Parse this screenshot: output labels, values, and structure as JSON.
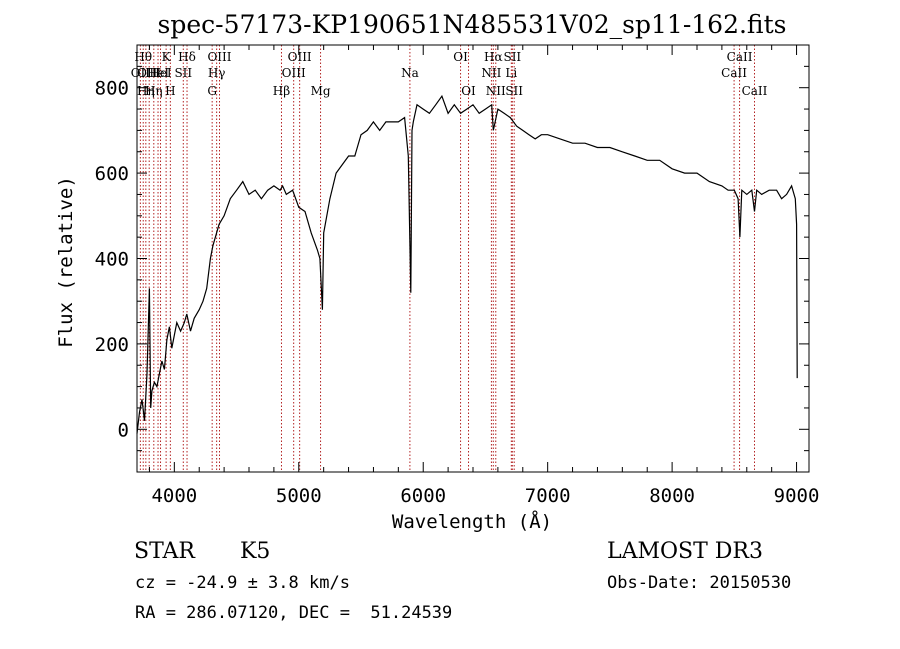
{
  "chart_data": {
    "type": "line",
    "title": "spec-57173-KP190651N485531V02_sp11-162.fits",
    "xlabel": "Wavelength (Å)",
    "ylabel": "Flux (relative)",
    "xlim": [
      3700,
      9100
    ],
    "ylim": [
      -100,
      900
    ],
    "xticks": [
      4000,
      5000,
      6000,
      7000,
      8000,
      9000
    ],
    "yticks": [
      0,
      200,
      400,
      600,
      800
    ],
    "grid": false,
    "series": [
      {
        "x": [
          3700,
          3720,
          3740,
          3760,
          3780,
          3800,
          3810,
          3820,
          3840,
          3860,
          3880,
          3900,
          3920,
          3940,
          3960,
          3980,
          4000,
          4020,
          4050,
          4080,
          4100,
          4130,
          4160,
          4200,
          4230,
          4260,
          4290,
          4310,
          4330,
          4360,
          4400,
          4450,
          4500,
          4550,
          4600,
          4650,
          4700,
          4750,
          4800,
          4850,
          4870,
          4900,
          4950,
          5000,
          5050,
          5100,
          5150,
          5170,
          5190,
          5200,
          5250,
          5300,
          5350,
          5400,
          5450,
          5500,
          5550,
          5600,
          5650,
          5700,
          5750,
          5800,
          5850,
          5880,
          5900,
          5910,
          5920,
          5950,
          6000,
          6050,
          6100,
          6150,
          6200,
          6250,
          6300,
          6350,
          6400,
          6450,
          6500,
          6550,
          6563,
          6600,
          6650,
          6700,
          6750,
          6800,
          6850,
          6900,
          6950,
          7000,
          7100,
          7200,
          7300,
          7400,
          7500,
          7600,
          7700,
          7800,
          7900,
          8000,
          8100,
          8200,
          8300,
          8400,
          8450,
          8500,
          8530,
          8545,
          8560,
          8600,
          8640,
          8662,
          8680,
          8720,
          8780,
          8840,
          8880,
          8920,
          8960,
          8990,
          9000,
          9005
        ],
        "y": [
          -10,
          40,
          70,
          20,
          130,
          330,
          50,
          90,
          110,
          100,
          130,
          160,
          140,
          210,
          240,
          190,
          220,
          250,
          230,
          250,
          270,
          230,
          260,
          280,
          300,
          330,
          400,
          430,
          450,
          480,
          500,
          540,
          560,
          580,
          550,
          560,
          540,
          560,
          570,
          560,
          570,
          550,
          560,
          520,
          510,
          460,
          420,
          400,
          280,
          460,
          540,
          600,
          620,
          640,
          640,
          690,
          700,
          720,
          700,
          720,
          720,
          720,
          730,
          640,
          320,
          700,
          720,
          760,
          750,
          740,
          760,
          780,
          740,
          760,
          740,
          750,
          760,
          740,
          750,
          760,
          700,
          750,
          740,
          730,
          710,
          700,
          690,
          680,
          690,
          690,
          680,
          670,
          670,
          660,
          660,
          650,
          640,
          630,
          630,
          610,
          600,
          600,
          580,
          570,
          560,
          560,
          540,
          450,
          560,
          550,
          560,
          510,
          560,
          550,
          560,
          560,
          540,
          550,
          570,
          540,
          480,
          120
        ]
      }
    ],
    "lines": [
      {
        "x": 3727,
        "label": "OII",
        "row": 2
      },
      {
        "x": 3750,
        "label": "Hθ",
        "row": 1
      },
      {
        "x": 3771,
        "label": "Hη",
        "row": 3
      },
      {
        "x": 3798,
        "label": "OIII",
        "row": 2
      },
      {
        "x": 3835,
        "label": "Hη",
        "row": 3
      },
      {
        "x": 3869,
        "label": "HeI",
        "row": 2
      },
      {
        "x": 3889,
        "label": "HeI",
        "row": 2
      },
      {
        "x": 3934,
        "label": "K",
        "row": 1
      },
      {
        "x": 3968,
        "label": "H",
        "row": 3
      },
      {
        "x": 4072,
        "label": "SII",
        "row": 2
      },
      {
        "x": 4102,
        "label": "Hδ",
        "row": 1
      },
      {
        "x": 4304,
        "label": "G",
        "row": 3
      },
      {
        "x": 4340,
        "label": "Hγ",
        "row": 2
      },
      {
        "x": 4363,
        "label": "OIII",
        "row": 1
      },
      {
        "x": 4861,
        "label": "Hβ",
        "row": 3
      },
      {
        "x": 4959,
        "label": "OIII",
        "row": 2
      },
      {
        "x": 5007,
        "label": "OIII",
        "row": 1
      },
      {
        "x": 5175,
        "label": "Mg",
        "row": 3
      },
      {
        "x": 5893,
        "label": "Na",
        "row": 2
      },
      {
        "x": 6300,
        "label": "OI",
        "row": 1
      },
      {
        "x": 6364,
        "label": "OI",
        "row": 3
      },
      {
        "x": 6548,
        "label": "NII",
        "row": 2
      },
      {
        "x": 6563,
        "label": "Hα",
        "row": 1
      },
      {
        "x": 6583,
        "label": "NII",
        "row": 3
      },
      {
        "x": 6708,
        "label": "Li",
        "row": 2
      },
      {
        "x": 6716,
        "label": "SII",
        "row": 1
      },
      {
        "x": 6731,
        "label": "SII",
        "row": 3
      },
      {
        "x": 8498,
        "label": "CaII",
        "row": 2
      },
      {
        "x": 8542,
        "label": "CaII",
        "row": 1
      },
      {
        "x": 8662,
        "label": "CaII",
        "row": 3
      }
    ]
  },
  "info": {
    "object_class": "STAR",
    "subclass": "K5",
    "survey": "LAMOST DR3",
    "redshift": "cz = -24.9 ± 3.8 km/s",
    "obs_date": "Obs-Date: 20150530",
    "coords": "RA = 286.07120, DEC =  51.24539"
  },
  "colors": {
    "spectrum": "#000000",
    "line_marker": "#b22222",
    "axes": "#000000"
  }
}
